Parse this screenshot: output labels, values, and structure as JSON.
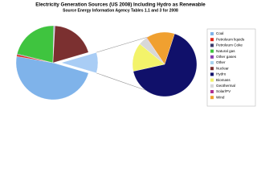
{
  "chart_data": {
    "type": "pie_of_pie",
    "title": "Electricity Generation Sources (US 2008) Including Hydro as Renewable",
    "subtitle": "Source Energy Information Agency Tables 1.1 and 3 for 2008",
    "categories": [
      "Coal",
      "Petroleum liquids",
      "Petroleum Coke",
      "Natural gas",
      "Other gases",
      "Other",
      "Nuclear",
      "Hydro",
      "Biomass",
      "Geothermal",
      "Solar/PV",
      "Wind"
    ],
    "values": [
      48.2,
      0.8,
      0.3,
      21.4,
      0.3,
      0.3,
      19.6,
      6.0,
      1.3,
      0.4,
      0.02,
      1.3
    ],
    "colors": [
      "#7fb3ea",
      "#e0281c",
      "#3b3b6b",
      "#3fc43f",
      "#8a3fb0",
      "#a8d4f0",
      "#7b3030",
      "#10106a",
      "#f3f36a",
      "#d8d8d8",
      "#b03090",
      "#f0a030"
    ],
    "split": 5,
    "combined_color": "#a9cdf5",
    "legend": "right"
  }
}
